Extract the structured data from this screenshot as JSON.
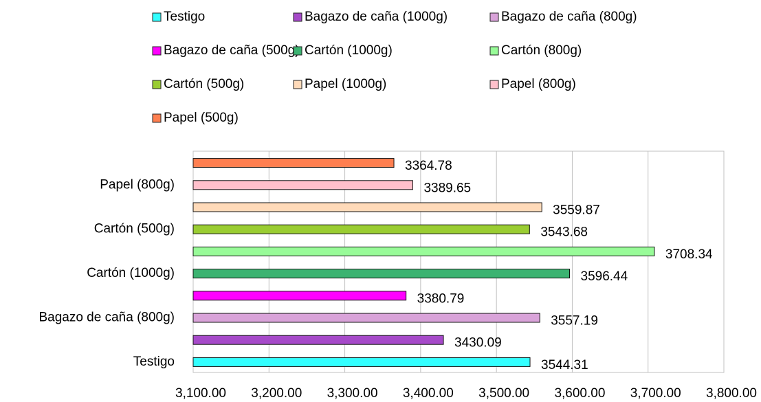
{
  "chart_data": {
    "type": "hbar",
    "legend": [
      "Testigo",
      "Bagazo de caña (1000g)",
      "Bagazo de caña (800g)",
      "Bagazo de caña (500g)",
      "Cartón (1000g)",
      "Cartón (800g)",
      "Cartón (500g)",
      "Papel (1000g)",
      "Papel (800g)",
      "Papel (500g)"
    ],
    "categories": [
      "Testigo",
      null,
      "Bagazo de caña (800g)",
      null,
      "Cartón (1000g)",
      null,
      "Cartón (500g)",
      null,
      "Papel (800g)",
      null
    ],
    "values": [
      3544.31,
      3430.09,
      3557.19,
      3380.79,
      3596.44,
      3708.34,
      3543.68,
      3559.87,
      3389.65,
      3364.78
    ],
    "colors": [
      "#33ffff",
      "#a64ac9",
      "#d9a3d9",
      "#ff00ff",
      "#3cb371",
      "#98fb98",
      "#9acd32",
      "#ffdab9",
      "#ffc0cb",
      "#ff7f50"
    ],
    "xlim": [
      3100,
      3800
    ],
    "xticks": [
      {
        "value": 3100,
        "label": "3,100.00"
      },
      {
        "value": 3200,
        "label": "3,200.00"
      },
      {
        "value": 3300,
        "label": "3,300.00"
      },
      {
        "value": 3400,
        "label": "3,400.00"
      },
      {
        "value": 3500,
        "label": "3,500.00"
      },
      {
        "value": 3600,
        "label": "3,600.00"
      },
      {
        "value": 3700,
        "label": "3,700.00"
      },
      {
        "value": 3800,
        "label": "3,800.00"
      }
    ],
    "grid": true
  }
}
